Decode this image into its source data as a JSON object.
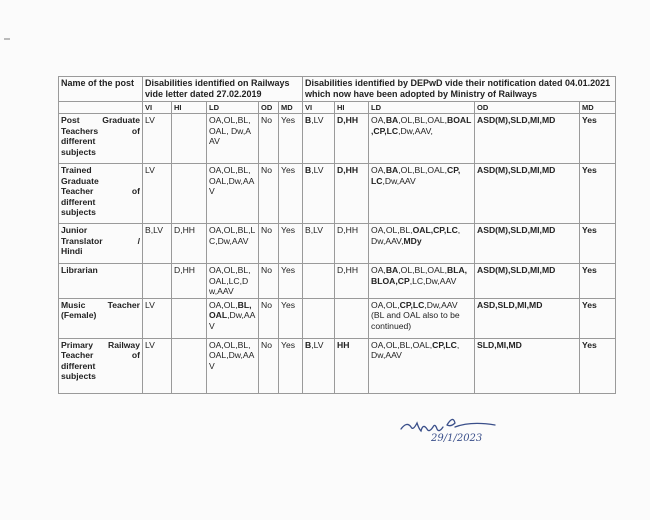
{
  "header": {
    "name_col": "Name of the post",
    "railways_group": "Disabilities identified on Railways vide letter dated 27.02.2019",
    "depwd_group": "Disabilities identified by DEPwD vide their notification dated 04.01.2021 which now have been adopted by Ministry of Railways",
    "subcols_railways": [
      "VI",
      "HI",
      "LD",
      "OD",
      "MD"
    ],
    "subcols_depwd": [
      "VI",
      "HI",
      "LD",
      "OD",
      "MD"
    ]
  },
  "rows": [
    {
      "name": [
        "Post Graduate",
        "Teachers of",
        "different",
        "subjects"
      ],
      "cells": [
        [
          [
            "LV",
            0
          ]
        ],
        [],
        [
          [
            "OA,OL,BL,OAL, Dw,AAV",
            0
          ]
        ],
        [
          [
            "No",
            0
          ]
        ],
        [
          [
            "Yes",
            0
          ]
        ],
        [
          [
            "B",
            1
          ],
          [
            ",LV",
            0
          ]
        ],
        [
          [
            "D,HH",
            1
          ]
        ],
        [
          [
            "OA,",
            0
          ],
          [
            "BA",
            1
          ],
          [
            ",OL,BL,OAL,",
            0
          ],
          [
            "BOAL,CP,LC",
            1
          ],
          [
            ",Dw,AAV,",
            0
          ]
        ],
        [
          [
            "ASD(M),SLD,MI,MD",
            1
          ]
        ],
        [
          [
            "Yes",
            1
          ]
        ]
      ]
    },
    {
      "name": [
        "Trained",
        "Graduate",
        "Teacher of",
        "different",
        "subjects"
      ],
      "cells": [
        [
          [
            "LV",
            0
          ]
        ],
        [],
        [
          [
            "OA,OL,BL,OAL,Dw,AAV",
            0
          ]
        ],
        [
          [
            "No",
            0
          ]
        ],
        [
          [
            "Yes",
            0
          ]
        ],
        [
          [
            "B",
            1
          ],
          [
            ",LV",
            0
          ]
        ],
        [
          [
            "D,HH",
            1
          ]
        ],
        [
          [
            "OA,",
            0
          ],
          [
            "BA",
            1
          ],
          [
            ",OL,BL,OAL,",
            0
          ],
          [
            "CP, LC",
            1
          ],
          [
            ",Dw,AAV",
            0
          ]
        ],
        [
          [
            "ASD(M),SLD,MI,MD",
            1
          ]
        ],
        [
          [
            "Yes",
            1
          ]
        ]
      ]
    },
    {
      "name": [
        "Junior",
        "Translator /",
        "Hindi"
      ],
      "cells": [
        [
          [
            "B,LV",
            0
          ]
        ],
        [
          [
            "D,HH",
            0
          ]
        ],
        [
          [
            "OA,OL,BL,LC,Dw,AAV",
            0
          ]
        ],
        [
          [
            "No",
            0
          ]
        ],
        [
          [
            "Yes",
            0
          ]
        ],
        [
          [
            "B,LV",
            0
          ]
        ],
        [
          [
            "D,HH",
            0
          ]
        ],
        [
          [
            "OA,OL,BL,",
            0
          ],
          [
            "OAL,CP,LC",
            1
          ],
          [
            ", Dw,AAV,",
            0
          ],
          [
            "MDy",
            1
          ]
        ],
        [
          [
            "ASD(M),SLD,MI,MD",
            1
          ]
        ],
        [
          [
            "Yes",
            1
          ]
        ]
      ]
    },
    {
      "name": [
        "Librarian"
      ],
      "cells": [
        [],
        [
          [
            "D,HH",
            0
          ]
        ],
        [
          [
            "OA,OL,BL,OAL,LC,Dw,AAV",
            0
          ]
        ],
        [
          [
            "No",
            0
          ]
        ],
        [
          [
            "Yes",
            0
          ]
        ],
        [],
        [
          [
            "D,HH",
            0
          ]
        ],
        [
          [
            "OA,",
            0
          ],
          [
            "BA",
            1
          ],
          [
            ",OL,BL,OAL,",
            0
          ],
          [
            "BLA,BLOA,CP",
            1
          ],
          [
            ",LC,Dw,AAV",
            0
          ]
        ],
        [
          [
            "ASD(M),SLD,MI,MD",
            1
          ]
        ],
        [
          [
            "Yes",
            1
          ]
        ]
      ]
    },
    {
      "name": [
        "Music Teacher",
        "(Female)"
      ],
      "cells": [
        [
          [
            "LV",
            0
          ]
        ],
        [],
        [
          [
            "OA,OL,",
            0
          ],
          [
            "BL,OAL",
            1
          ],
          [
            ",Dw,AAV",
            0
          ]
        ],
        [
          [
            "No",
            0
          ]
        ],
        [
          [
            "Yes",
            0
          ]
        ],
        [],
        [],
        [
          [
            "OA,OL,",
            0
          ],
          [
            "CP,LC",
            1
          ],
          [
            ",Dw,AAV (BL and OAL also to be continued)",
            0
          ]
        ],
        [
          [
            "ASD,SLD,MI,MD",
            1
          ]
        ],
        [
          [
            "Yes",
            1
          ]
        ]
      ]
    },
    {
      "name": [
        "Primary Railway",
        "Teacher of",
        "different",
        "subjects"
      ],
      "cells": [
        [
          [
            "LV",
            0
          ]
        ],
        [],
        [
          [
            "OA,OL,BL,OAL,Dw,AAV",
            0
          ]
        ],
        [
          [
            "No",
            0
          ]
        ],
        [
          [
            "Yes",
            0
          ]
        ],
        [
          [
            "B",
            1
          ],
          [
            ",LV",
            0
          ]
        ],
        [
          [
            "HH",
            1
          ]
        ],
        [
          [
            "OA,OL,BL,OAL,",
            0
          ],
          [
            "CP,LC",
            1
          ],
          [
            ", Dw,AAV",
            0
          ]
        ],
        [
          [
            "SLD,MI,MD",
            1
          ]
        ],
        [
          [
            "Yes",
            1
          ]
        ]
      ]
    }
  ],
  "signature": {
    "text": "29/1/2023"
  }
}
